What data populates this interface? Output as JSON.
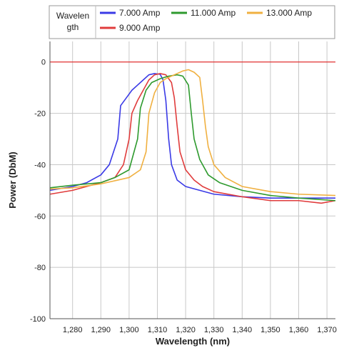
{
  "chart_data": {
    "type": "line",
    "title": "",
    "xlabel": "Wavelength (nm)",
    "ylabel": "Power (DbM)",
    "xlim": [
      1272,
      1373
    ],
    "ylim": [
      -100,
      8
    ],
    "grid": true,
    "legend": {
      "title": "Wavelength",
      "title_lines": [
        "Wavelen",
        "gth"
      ],
      "placement": "top"
    },
    "x_ticks": [
      1280,
      1290,
      1300,
      1310,
      1320,
      1330,
      1340,
      1350,
      1360,
      1370
    ],
    "x_tick_labels": [
      "1,280",
      "1,290",
      "1,300",
      "1,310",
      "1,320",
      "1,330",
      "1,340",
      "1,350",
      "1,360",
      "1,370"
    ],
    "y_ticks": [
      0,
      -20,
      -40,
      -60,
      -80,
      -100
    ],
    "y_tick_labels": [
      "0",
      "-20",
      "-40",
      "-60",
      "-80",
      "-100"
    ],
    "reference_line": {
      "y": 0,
      "color": "#e03030"
    },
    "series": [
      {
        "name": "7.000 Amp",
        "color": "#3a3ae6",
        "points": [
          [
            1272,
            -50
          ],
          [
            1280,
            -48.5
          ],
          [
            1285,
            -47
          ],
          [
            1290,
            -44
          ],
          [
            1293,
            -40
          ],
          [
            1296,
            -30
          ],
          [
            1297,
            -17
          ],
          [
            1299,
            -14
          ],
          [
            1301,
            -11
          ],
          [
            1303,
            -9
          ],
          [
            1305,
            -7
          ],
          [
            1307,
            -5
          ],
          [
            1309,
            -4.5
          ],
          [
            1311,
            -4.8
          ],
          [
            1312,
            -7
          ],
          [
            1313,
            -15
          ],
          [
            1314,
            -30
          ],
          [
            1315,
            -40
          ],
          [
            1317,
            -46
          ],
          [
            1320,
            -48.5
          ],
          [
            1325,
            -50
          ],
          [
            1330,
            -51.5
          ],
          [
            1340,
            -52.5
          ],
          [
            1350,
            -53
          ],
          [
            1360,
            -53
          ],
          [
            1373,
            -53
          ]
        ]
      },
      {
        "name": "9.000 Amp",
        "color": "#e03c3c",
        "points": [
          [
            1272,
            -51.5
          ],
          [
            1280,
            -50
          ],
          [
            1290,
            -47
          ],
          [
            1295,
            -45
          ],
          [
            1298,
            -40
          ],
          [
            1300,
            -30
          ],
          [
            1301,
            -20
          ],
          [
            1303,
            -15
          ],
          [
            1305,
            -11
          ],
          [
            1307,
            -7
          ],
          [
            1309,
            -5
          ],
          [
            1311,
            -4.5
          ],
          [
            1313,
            -5
          ],
          [
            1315,
            -8
          ],
          [
            1316,
            -14
          ],
          [
            1317,
            -25
          ],
          [
            1318,
            -35
          ],
          [
            1320,
            -42
          ],
          [
            1323,
            -46
          ],
          [
            1326,
            -48.5
          ],
          [
            1330,
            -50.5
          ],
          [
            1340,
            -52.5
          ],
          [
            1350,
            -54
          ],
          [
            1360,
            -54
          ],
          [
            1368,
            -55
          ],
          [
            1373,
            -54
          ]
        ]
      },
      {
        "name": "11.000 Amp",
        "color": "#2e9a2e",
        "points": [
          [
            1272,
            -49
          ],
          [
            1280,
            -48
          ],
          [
            1290,
            -47
          ],
          [
            1295,
            -45
          ],
          [
            1300,
            -42
          ],
          [
            1303,
            -30
          ],
          [
            1304,
            -18
          ],
          [
            1306,
            -11
          ],
          [
            1308,
            -8
          ],
          [
            1311,
            -6.5
          ],
          [
            1314,
            -5.5
          ],
          [
            1317,
            -5
          ],
          [
            1319,
            -5.5
          ],
          [
            1321,
            -9
          ],
          [
            1322,
            -20
          ],
          [
            1323,
            -30
          ],
          [
            1325,
            -38
          ],
          [
            1328,
            -44
          ],
          [
            1332,
            -47
          ],
          [
            1340,
            -50
          ],
          [
            1350,
            -52
          ],
          [
            1360,
            -53
          ],
          [
            1373,
            -54
          ]
        ]
      },
      {
        "name": "13.000 Amp",
        "color": "#f0b040",
        "points": [
          [
            1272,
            -49.5
          ],
          [
            1280,
            -49
          ],
          [
            1290,
            -47.5
          ],
          [
            1300,
            -45
          ],
          [
            1304,
            -42
          ],
          [
            1306,
            -35
          ],
          [
            1307,
            -20
          ],
          [
            1309,
            -12
          ],
          [
            1311,
            -8
          ],
          [
            1313,
            -6.5
          ],
          [
            1316,
            -5
          ],
          [
            1319,
            -3.5
          ],
          [
            1321,
            -3
          ],
          [
            1323,
            -4
          ],
          [
            1325,
            -6
          ],
          [
            1326,
            -15
          ],
          [
            1327,
            -25
          ],
          [
            1328,
            -33
          ],
          [
            1330,
            -40
          ],
          [
            1334,
            -45
          ],
          [
            1340,
            -48.5
          ],
          [
            1350,
            -50.5
          ],
          [
            1360,
            -51.5
          ],
          [
            1373,
            -52
          ]
        ]
      }
    ]
  }
}
